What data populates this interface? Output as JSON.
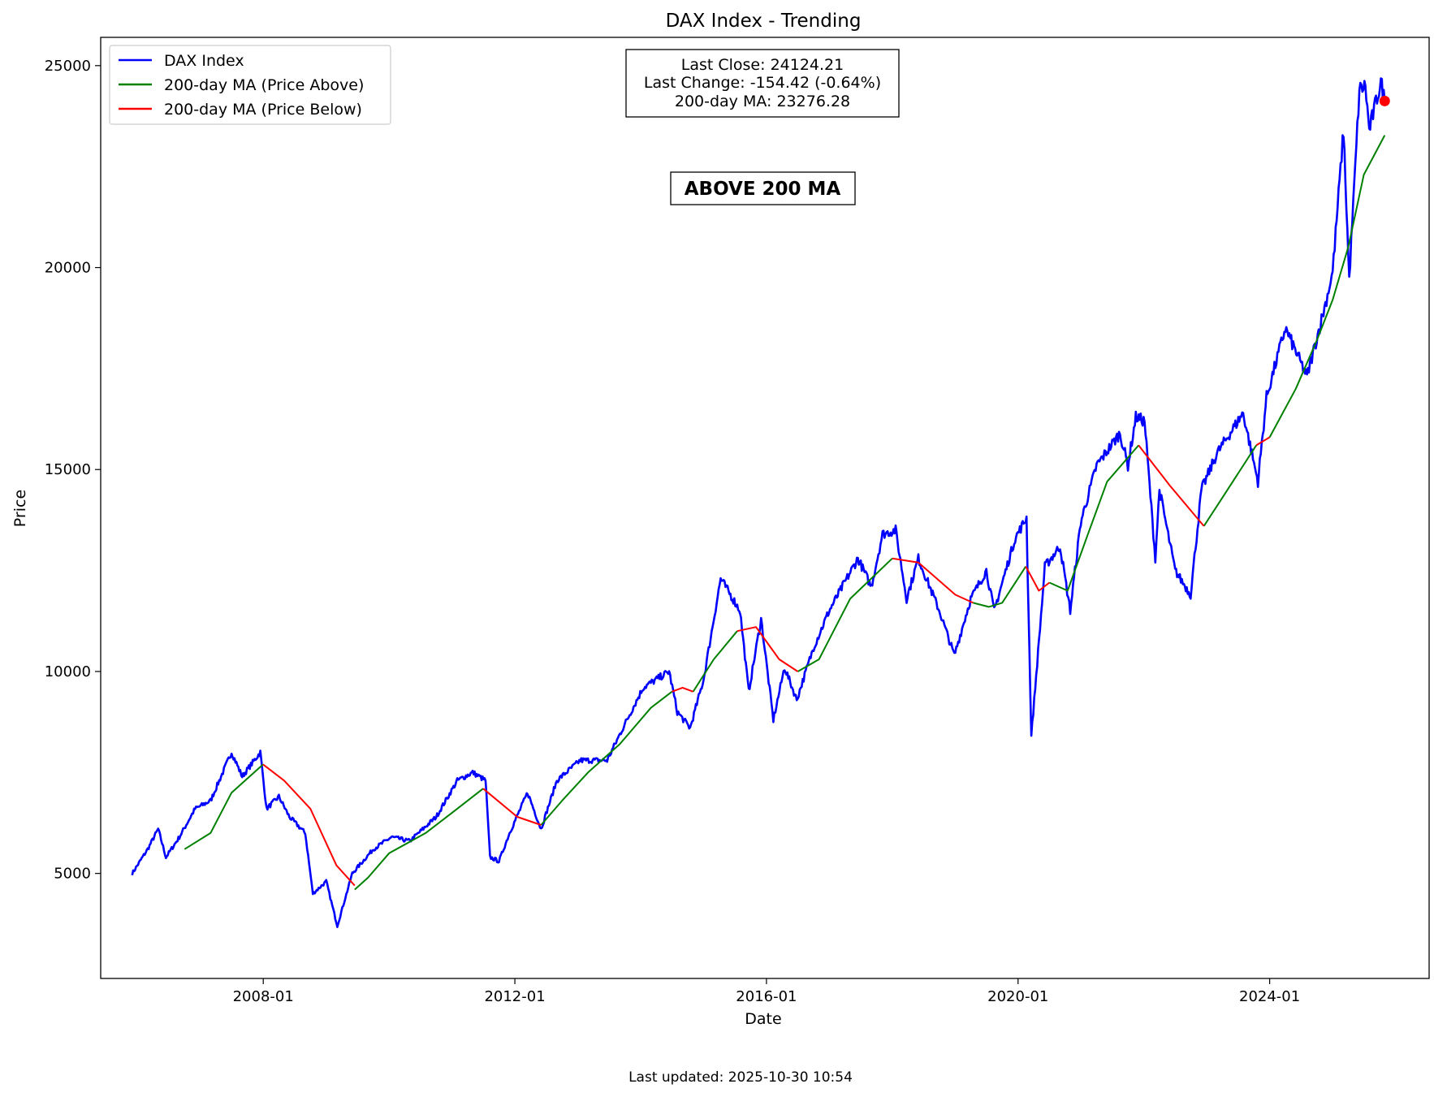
{
  "chart_data": {
    "type": "line",
    "title": "DAX Index - Trending",
    "xlabel": "Date",
    "ylabel": "Price",
    "xlim": [
      "2005-06-01",
      "2026-07-15"
    ],
    "ylim": [
      2400,
      25700
    ],
    "x_ticks": [
      "2008-01",
      "2012-01",
      "2016-01",
      "2020-01",
      "2024-01"
    ],
    "y_ticks": [
      5000,
      10000,
      15000,
      20000,
      25000
    ],
    "grid": false,
    "legend_position": "upper-left",
    "legend": [
      {
        "label": "DAX Index",
        "color": "#0000ff"
      },
      {
        "label": "200-day MA (Price Above)",
        "color": "#008000"
      },
      {
        "label": "200-day MA (Price Below)",
        "color": "#ff0000"
      }
    ],
    "info_box": {
      "last_close": "Last Close: 24124.21",
      "last_change": "Last Change: -154.42 (-0.64%)",
      "ma_value": "200-day MA: 23276.28"
    },
    "status_label": "ABOVE 200 MA",
    "status_color": "#008000",
    "last_point": {
      "x": "2025-10-30",
      "y": 24124.21,
      "color": "#ff0000"
    },
    "series": [
      {
        "name": "DAX Index",
        "color": "#0000ff",
        "points": [
          [
            "2005-12-01",
            5000
          ],
          [
            "2006-03-01",
            5600
          ],
          [
            "2006-05-01",
            6100
          ],
          [
            "2006-06-15",
            5400
          ],
          [
            "2006-09-01",
            5900
          ],
          [
            "2006-12-01",
            6600
          ],
          [
            "2007-03-01",
            6800
          ],
          [
            "2007-07-01",
            8000
          ],
          [
            "2007-09-01",
            7400
          ],
          [
            "2007-12-15",
            8000
          ],
          [
            "2008-01-20",
            6600
          ],
          [
            "2008-04-01",
            6900
          ],
          [
            "2008-06-01",
            6400
          ],
          [
            "2008-09-01",
            6000
          ],
          [
            "2008-10-15",
            4500
          ],
          [
            "2009-01-01",
            4800
          ],
          [
            "2009-03-06",
            3700
          ],
          [
            "2009-06-01",
            5000
          ],
          [
            "2009-10-01",
            5600
          ],
          [
            "2010-01-15",
            5900
          ],
          [
            "2010-05-01",
            5800
          ],
          [
            "2010-10-01",
            6400
          ],
          [
            "2011-02-01",
            7300
          ],
          [
            "2011-05-01",
            7500
          ],
          [
            "2011-07-15",
            7300
          ],
          [
            "2011-08-10",
            5400
          ],
          [
            "2011-10-01",
            5300
          ],
          [
            "2011-12-01",
            6000
          ],
          [
            "2012-03-15",
            7000
          ],
          [
            "2012-06-01",
            6100
          ],
          [
            "2012-09-01",
            7300
          ],
          [
            "2013-01-15",
            7800
          ],
          [
            "2013-06-20",
            7800
          ],
          [
            "2013-10-01",
            8700
          ],
          [
            "2014-01-15",
            9600
          ],
          [
            "2014-06-15",
            10000
          ],
          [
            "2014-08-01",
            9000
          ],
          [
            "2014-10-15",
            8600
          ],
          [
            "2015-01-01",
            9800
          ],
          [
            "2015-04-10",
            12300
          ],
          [
            "2015-08-01",
            11500
          ],
          [
            "2015-09-20",
            9500
          ],
          [
            "2015-12-01",
            11300
          ],
          [
            "2016-02-10",
            8800
          ],
          [
            "2016-04-15",
            10100
          ],
          [
            "2016-06-25",
            9300
          ],
          [
            "2016-10-01",
            10600
          ],
          [
            "2016-12-30",
            11500
          ],
          [
            "2017-06-15",
            12800
          ],
          [
            "2017-09-01",
            12100
          ],
          [
            "2017-11-05",
            13400
          ],
          [
            "2018-01-20",
            13500
          ],
          [
            "2018-03-25",
            11800
          ],
          [
            "2018-06-01",
            12800
          ],
          [
            "2018-10-01",
            11500
          ],
          [
            "2018-12-27",
            10400
          ],
          [
            "2019-04-01",
            11800
          ],
          [
            "2019-07-01",
            12500
          ],
          [
            "2019-08-15",
            11500
          ],
          [
            "2019-12-15",
            13300
          ],
          [
            "2020-02-19",
            13800
          ],
          [
            "2020-03-18",
            8400
          ],
          [
            "2020-06-05",
            12600
          ],
          [
            "2020-09-01",
            13100
          ],
          [
            "2020-10-30",
            11500
          ],
          [
            "2020-12-30",
            13700
          ],
          [
            "2021-04-01",
            15100
          ],
          [
            "2021-08-15",
            15900
          ],
          [
            "2021-09-30",
            15100
          ],
          [
            "2021-11-15",
            16300
          ],
          [
            "2022-01-05",
            16200
          ],
          [
            "2022-03-08",
            12800
          ],
          [
            "2022-04-01",
            14500
          ],
          [
            "2022-07-01",
            12500
          ],
          [
            "2022-09-29",
            11900
          ],
          [
            "2022-12-01",
            14500
          ],
          [
            "2023-03-01",
            15400
          ],
          [
            "2023-07-31",
            16400
          ],
          [
            "2023-10-25",
            14700
          ],
          [
            "2023-12-14",
            16800
          ],
          [
            "2024-04-01",
            18500
          ],
          [
            "2024-08-05",
            17300
          ],
          [
            "2024-11-20",
            19100
          ],
          [
            "2025-01-01",
            19900
          ],
          [
            "2025-03-05",
            23400
          ],
          [
            "2025-04-07",
            19700
          ],
          [
            "2025-06-05",
            24400
          ],
          [
            "2025-07-10",
            24500
          ],
          [
            "2025-08-01",
            23400
          ],
          [
            "2025-10-08",
            24600
          ],
          [
            "2025-10-30",
            24124
          ]
        ]
      },
      {
        "name": "200-day MA (Price Above)",
        "color": "#008000",
        "segments": [
          [
            [
              "2006-10-01",
              5600
            ],
            [
              "2007-03-01",
              6000
            ],
            [
              "2007-07-01",
              7000
            ],
            [
              "2007-12-31",
              7700
            ]
          ],
          [
            [
              "2009-06-15",
              4600
            ],
            [
              "2009-09-01",
              4900
            ],
            [
              "2010-01-01",
              5500
            ],
            [
              "2010-08-01",
              6000
            ],
            [
              "2011-01-01",
              6500
            ],
            [
              "2011-07-01",
              7100
            ]
          ],
          [
            [
              "2012-06-01",
              6200
            ],
            [
              "2012-10-01",
              6800
            ],
            [
              "2013-03-01",
              7500
            ],
            [
              "2013-09-01",
              8200
            ],
            [
              "2014-03-01",
              9100
            ],
            [
              "2014-07-01",
              9500
            ]
          ],
          [
            [
              "2014-11-01",
              9500
            ],
            [
              "2015-03-01",
              10300
            ],
            [
              "2015-07-15",
              11000
            ]
          ],
          [
            [
              "2016-07-01",
              10000
            ],
            [
              "2016-11-01",
              10300
            ],
            [
              "2017-05-01",
              11800
            ],
            [
              "2018-01-01",
              12800
            ]
          ],
          [
            [
              "2019-04-15",
              11700
            ],
            [
              "2019-07-15",
              11600
            ],
            [
              "2019-10-01",
              11700
            ],
            [
              "2020-02-15",
              12600
            ]
          ],
          [
            [
              "2020-07-01",
              12200
            ],
            [
              "2020-10-15",
              12000
            ],
            [
              "2021-02-01",
              13300
            ],
            [
              "2021-06-01",
              14700
            ],
            [
              "2021-12-01",
              15600
            ]
          ],
          [
            [
              "2022-12-15",
              13600
            ],
            [
              "2023-04-01",
              14300
            ],
            [
              "2023-10-15",
              15600
            ]
          ],
          [
            [
              "2024-01-01",
              15800
            ],
            [
              "2024-06-01",
              17000
            ],
            [
              "2024-10-01",
              18200
            ],
            [
              "2025-01-01",
              19200
            ],
            [
              "2025-04-01",
              20500
            ],
            [
              "2025-07-01",
              22300
            ],
            [
              "2025-10-30",
              23276
            ]
          ]
        ]
      },
      {
        "name": "200-day MA (Price Below)",
        "color": "#ff0000",
        "segments": [
          [
            [
              "2007-12-31",
              7700
            ],
            [
              "2008-05-01",
              7300
            ],
            [
              "2008-10-01",
              6600
            ],
            [
              "2009-03-01",
              5200
            ],
            [
              "2009-06-15",
              4700
            ]
          ],
          [
            [
              "2011-07-01",
              7100
            ],
            [
              "2012-01-15",
              6400
            ],
            [
              "2012-06-01",
              6200
            ]
          ],
          [
            [
              "2014-07-01",
              9500
            ],
            [
              "2014-09-01",
              9600
            ],
            [
              "2014-11-01",
              9500
            ]
          ],
          [
            [
              "2015-07-15",
              11000
            ],
            [
              "2015-11-01",
              11100
            ],
            [
              "2016-03-15",
              10300
            ],
            [
              "2016-07-01",
              10000
            ]
          ],
          [
            [
              "2018-01-01",
              12800
            ],
            [
              "2018-06-01",
              12700
            ],
            [
              "2019-01-01",
              11900
            ],
            [
              "2019-04-15",
              11700
            ]
          ],
          [
            [
              "2020-02-15",
              12600
            ],
            [
              "2020-05-01",
              12000
            ],
            [
              "2020-07-01",
              12200
            ]
          ],
          [
            [
              "2021-12-01",
              15600
            ],
            [
              "2022-06-01",
              14600
            ],
            [
              "2022-12-15",
              13600
            ]
          ],
          [
            [
              "2023-10-15",
              15600
            ],
            [
              "2024-01-01",
              15800
            ]
          ]
        ]
      }
    ]
  },
  "footer": {
    "updated": "Last updated: 2025-10-30 10:54"
  }
}
